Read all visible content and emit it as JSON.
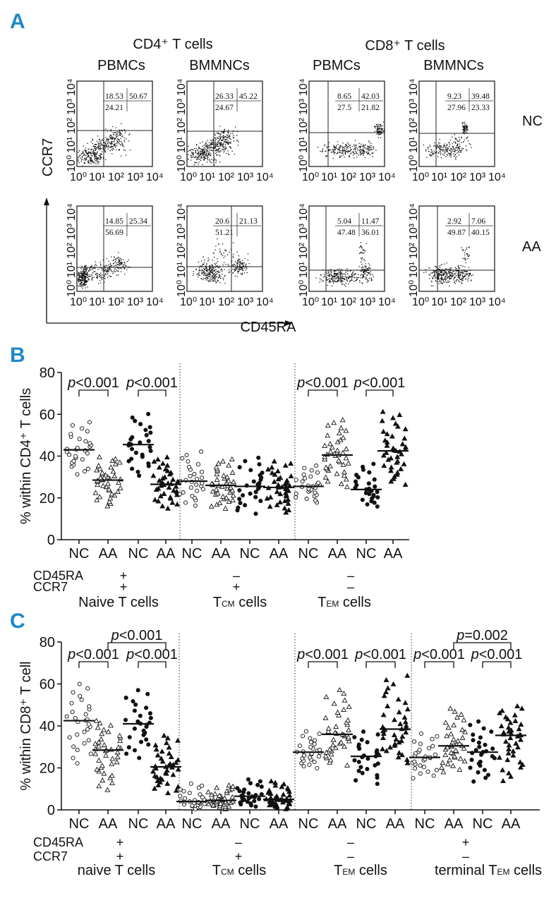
{
  "panel_labels": {
    "a": "A",
    "b": "B",
    "c": "C"
  },
  "panelA": {
    "col_headers": [
      "CD4⁺ T cells",
      "CD8⁺ T cells"
    ],
    "sub_headers": [
      "PBMCs",
      "BMMNCs",
      "PBMCs",
      "BMMNCs"
    ],
    "row_labels": [
      "NC",
      "AA"
    ],
    "y_axis_label": "CCR7",
    "x_axis_label": "CD45RA",
    "tick_labels": [
      "10⁰",
      "10¹",
      "10²",
      "10³",
      "10⁴"
    ],
    "quadrants": [
      {
        "top_left": "18.53",
        "top_right": "50.67",
        "bottom": "24.21"
      },
      {
        "top_left": "26.33",
        "top_right": "45.22",
        "bottom": "24.67"
      },
      {
        "top_left": "8.65",
        "top_right": "42.03",
        "bottom": "27.5",
        "bottom_right": "21.82"
      },
      {
        "top_left": "9.23",
        "top_right": "39.48",
        "bottom": "27.96",
        "bottom_right": "23.33"
      },
      {
        "top_left": "14.85",
        "top_right": "25.34",
        "bottom": "56.69"
      },
      {
        "top_left": "20.6",
        "top_right": "21.13",
        "bottom": "51.21"
      },
      {
        "top_left": "5.04",
        "top_right": "11.47",
        "bottom": "47.48",
        "bottom_right": "36.01"
      },
      {
        "top_left": "2.92",
        "top_right": "7.06",
        "bottom": "49.87",
        "bottom_right": "40.15"
      }
    ]
  },
  "chart_data": [
    {
      "type": "scatter",
      "panel": "B",
      "ylabel": "% within CD4⁺ T cells",
      "ylim": [
        0,
        80
      ],
      "yticks": [
        "0",
        "20",
        "40",
        "60",
        "80"
      ],
      "categories": [
        "NC",
        "AA",
        "NC",
        "AA",
        "NC",
        "AA",
        "NC",
        "AA",
        "NC",
        "AA",
        "NC",
        "AA"
      ],
      "markers": [
        "open-circle",
        "open-triangle",
        "filled-circle",
        "filled-triangle",
        "open-circle",
        "open-triangle",
        "filled-circle",
        "filled-triangle",
        "open-circle",
        "open-triangle",
        "filled-circle",
        "filled-triangle"
      ],
      "medians": [
        43,
        28.5,
        45.5,
        26.5,
        28,
        26,
        25.5,
        25,
        25.5,
        40.5,
        24,
        42.5
      ],
      "spread": [
        [
          30,
          57
        ],
        [
          15,
          40
        ],
        [
          29,
          61
        ],
        [
          14,
          40
        ],
        [
          15,
          43
        ],
        [
          14,
          39
        ],
        [
          11,
          40
        ],
        [
          12,
          38
        ],
        [
          17,
          36
        ],
        [
          24,
          58
        ],
        [
          15,
          37
        ],
        [
          25,
          62
        ]
      ],
      "counts": [
        28,
        40,
        28,
        40,
        28,
        40,
        28,
        40,
        28,
        40,
        28,
        40
      ],
      "comparisons": [
        {
          "label_italic": "p",
          "label_rest": "<0.001",
          "from": 0,
          "to": 1
        },
        {
          "label_italic": "p",
          "label_rest": "<0.001",
          "from": 2,
          "to": 3
        },
        {
          "label_italic": "p",
          "label_rest": "<0.001",
          "from": 8,
          "to": 9
        },
        {
          "label_italic": "p",
          "label_rest": "<0.001",
          "from": 10,
          "to": 11
        }
      ],
      "row_labels": [
        "CD45RA",
        "CCR7"
      ],
      "group_signs": [
        [
          "+",
          "+"
        ],
        [
          "–",
          "+"
        ],
        [
          "–",
          "–"
        ]
      ],
      "group_names": [
        {
          "main": "Naive T cells"
        },
        {
          "main": "T",
          "sub": "CM",
          "tail": " cells"
        },
        {
          "main": "T",
          "sub": "EM",
          "tail": " cells"
        }
      ]
    },
    {
      "type": "scatter",
      "panel": "C",
      "ylabel": "% within CD8⁺ T cell",
      "ylim": [
        0,
        80
      ],
      "yticks": [
        "0",
        "20",
        "40",
        "60",
        "80"
      ],
      "categories": [
        "NC",
        "AA",
        "NC",
        "AA",
        "NC",
        "AA",
        "NC",
        "AA",
        "NC",
        "AA",
        "NC",
        "AA",
        "NC",
        "AA",
        "NC",
        "AA"
      ],
      "markers": [
        "open-circle",
        "open-triangle",
        "filled-circle",
        "filled-triangle",
        "open-circle",
        "open-triangle",
        "filled-circle",
        "filled-triangle",
        "open-circle",
        "open-triangle",
        "filled-circle",
        "filled-triangle",
        "open-circle",
        "open-triangle",
        "filled-circle",
        "filled-triangle"
      ],
      "medians": [
        42.5,
        28.5,
        41,
        20.5,
        4,
        4.5,
        6.5,
        5,
        27.5,
        36,
        25.5,
        38.5,
        25,
        30.5,
        27.5,
        35.5
      ],
      "spread": [
        [
          20,
          61
        ],
        [
          8,
          43
        ],
        [
          23,
          58
        ],
        [
          7,
          36
        ],
        [
          0,
          13
        ],
        [
          0,
          12
        ],
        [
          1,
          15
        ],
        [
          0,
          14
        ],
        [
          19,
          38
        ],
        [
          20,
          58
        ],
        [
          11,
          38
        ],
        [
          21,
          65
        ],
        [
          14,
          37
        ],
        [
          17,
          49
        ],
        [
          12,
          43
        ],
        [
          12,
          50
        ]
      ],
      "counts": [
        28,
        40,
        28,
        40,
        28,
        40,
        28,
        40,
        28,
        40,
        28,
        40,
        28,
        40,
        28,
        40
      ],
      "comparisons": [
        {
          "label_italic": "p",
          "label_rest": "<0.001",
          "from": 0,
          "to": 1
        },
        {
          "label_italic": "p",
          "label_rest": "<0.001",
          "from": 2,
          "to": 3
        },
        {
          "label_italic": "p",
          "label_rest": "<0.001",
          "from": 1,
          "to": 3,
          "level": 2
        },
        {
          "label_italic": "p",
          "label_rest": "<0.001",
          "from": 8,
          "to": 9
        },
        {
          "label_italic": "p",
          "label_rest": "<0.001",
          "from": 10,
          "to": 11
        },
        {
          "label_italic": "p",
          "label_rest": "<0.001",
          "from": 12,
          "to": 13
        },
        {
          "label_italic": "p",
          "label_rest": "<0.001",
          "from": 14,
          "to": 15
        },
        {
          "label_italic": "p",
          "label_rest": "=0.002",
          "from": 13,
          "to": 15,
          "level": 2
        }
      ],
      "row_labels": [
        "CD45RA",
        "CCR7"
      ],
      "group_signs": [
        [
          "+",
          "+"
        ],
        [
          "–",
          "+"
        ],
        [
          "–",
          "–"
        ],
        [
          "+",
          "–"
        ]
      ],
      "group_names": [
        {
          "main": "naive T cells"
        },
        {
          "main": "T",
          "sub": "CM",
          "tail": " cells"
        },
        {
          "main": "T",
          "sub": "EM",
          "tail": " cells"
        },
        {
          "main": "terminal T",
          "sub": "EM",
          "tail": " cells"
        }
      ]
    }
  ]
}
